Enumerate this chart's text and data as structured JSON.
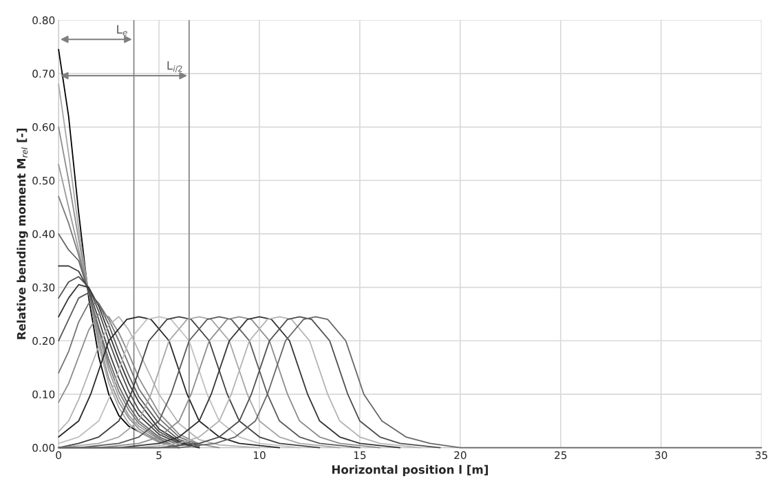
{
  "chart_data": {
    "type": "line",
    "xlabel": "Horizontal position l [m]",
    "ylabel": "Relative bending moment M$_{rel}$ [-]",
    "xlim": [
      0,
      35
    ],
    "xticks": [
      0,
      5,
      10,
      15,
      20,
      25,
      30,
      35
    ],
    "ylim": [
      0,
      0.8
    ],
    "yticks": [
      {
        "value": 0,
        "label": "0.00"
      },
      {
        "value": 0.1,
        "label": "0.10"
      },
      {
        "value": 0.2,
        "label": "0.20"
      },
      {
        "value": 0.3,
        "label": "0.30"
      },
      {
        "value": 0.4,
        "label": "0.40"
      },
      {
        "value": 0.5,
        "label": "0.50"
      },
      {
        "value": 0.6,
        "label": "0.60"
      },
      {
        "value": 0.7,
        "label": "0.70"
      },
      {
        "value": 0.8,
        "label": "0.80"
      }
    ],
    "grid": true,
    "ref_lines": [
      {
        "axis": "x",
        "value": 3.75,
        "label": "L$_{e}$",
        "color": "#7f7f7f"
      },
      {
        "axis": "x",
        "value": 6.5,
        "label": "L$_{i/2}$",
        "color": "#7f7f7f"
      }
    ],
    "series": [
      {
        "color": "#000000",
        "x": [
          0,
          0.5,
          1,
          1.5,
          2,
          2.5,
          3,
          3.5,
          4,
          5,
          6
        ],
        "values": [
          0.745,
          0.62,
          0.44,
          0.28,
          0.17,
          0.1,
          0.06,
          0.04,
          0.03,
          0.01,
          0.0
        ]
      },
      {
        "color": "#a6a6a6",
        "x": [
          0,
          0.5,
          1,
          1.5,
          2,
          2.5,
          3,
          3.5,
          4,
          5,
          6
        ],
        "values": [
          0.68,
          0.55,
          0.41,
          0.29,
          0.19,
          0.12,
          0.075,
          0.045,
          0.03,
          0.01,
          0.0
        ]
      },
      {
        "color": "#8c8c8c",
        "x": [
          0,
          0.5,
          1,
          1.5,
          2,
          2.5,
          3,
          3.5,
          4,
          5,
          6
        ],
        "values": [
          0.6,
          0.5,
          0.39,
          0.29,
          0.2,
          0.13,
          0.085,
          0.055,
          0.035,
          0.012,
          0.0
        ]
      },
      {
        "color": "#999999",
        "x": [
          0,
          0.5,
          1,
          1.5,
          2,
          2.5,
          3,
          3.5,
          4,
          5,
          6
        ],
        "values": [
          0.53,
          0.45,
          0.37,
          0.29,
          0.21,
          0.145,
          0.095,
          0.06,
          0.04,
          0.015,
          0.0
        ]
      },
      {
        "color": "#7a7a7a",
        "x": [
          0,
          0.5,
          1,
          1.5,
          2,
          2.5,
          3,
          3.5,
          4,
          5,
          6
        ],
        "values": [
          0.47,
          0.42,
          0.36,
          0.29,
          0.22,
          0.155,
          0.105,
          0.07,
          0.045,
          0.017,
          0.0
        ]
      },
      {
        "color": "#666666",
        "x": [
          0,
          0.5,
          1,
          1.5,
          2,
          2.5,
          3,
          3.5,
          4,
          5,
          6
        ],
        "values": [
          0.4,
          0.37,
          0.35,
          0.29,
          0.225,
          0.165,
          0.115,
          0.078,
          0.05,
          0.02,
          0.005
        ]
      },
      {
        "color": "#404040",
        "x": [
          0,
          0.5,
          1,
          1.5,
          2,
          2.5,
          3,
          3.5,
          4,
          5,
          6,
          7
        ],
        "values": [
          0.34,
          0.34,
          0.33,
          0.295,
          0.24,
          0.18,
          0.13,
          0.09,
          0.06,
          0.025,
          0.008,
          0.0
        ]
      },
      {
        "color": "#4d4d4d",
        "x": [
          0,
          0.5,
          1,
          1.5,
          2,
          2.5,
          3,
          3.5,
          4,
          5,
          6,
          7
        ],
        "values": [
          0.28,
          0.31,
          0.32,
          0.3,
          0.255,
          0.2,
          0.15,
          0.105,
          0.07,
          0.03,
          0.01,
          0.0
        ]
      },
      {
        "color": "#333333",
        "x": [
          0,
          0.5,
          1,
          1.5,
          2,
          2.5,
          3,
          3.5,
          4,
          5,
          6,
          7
        ],
        "values": [
          0.245,
          0.28,
          0.305,
          0.3,
          0.265,
          0.215,
          0.165,
          0.12,
          0.085,
          0.035,
          0.012,
          0.0
        ]
      },
      {
        "color": "#595959",
        "x": [
          0,
          0.5,
          1,
          1.5,
          2,
          2.5,
          3,
          3.5,
          4,
          5,
          6,
          7
        ],
        "values": [
          0.2,
          0.24,
          0.28,
          0.29,
          0.27,
          0.23,
          0.18,
          0.135,
          0.095,
          0.045,
          0.015,
          0.003
        ]
      },
      {
        "color": "#737373",
        "x": [
          0,
          0.5,
          1,
          1.5,
          2,
          2.5,
          3,
          3.5,
          4,
          5,
          6,
          7
        ],
        "values": [
          0.14,
          0.18,
          0.235,
          0.27,
          0.27,
          0.24,
          0.2,
          0.155,
          0.11,
          0.055,
          0.02,
          0.005
        ]
      },
      {
        "color": "#8c8c8c",
        "x": [
          0,
          0.5,
          1,
          1.5,
          2,
          2.5,
          3,
          3.5,
          4,
          5,
          6,
          7,
          8
        ],
        "values": [
          0.085,
          0.12,
          0.17,
          0.22,
          0.25,
          0.245,
          0.215,
          0.175,
          0.13,
          0.065,
          0.025,
          0.007,
          0.0
        ]
      },
      {
        "color": "#b3b3b3",
        "x": [
          0,
          0.5,
          1,
          1.5,
          2,
          2.5,
          3,
          3.5,
          4,
          5,
          6,
          7,
          8,
          10
        ],
        "values": [
          0.03,
          0.05,
          0.09,
          0.14,
          0.19,
          0.23,
          0.245,
          0.22,
          0.18,
          0.1,
          0.045,
          0.015,
          0.005,
          0.0
        ]
      },
      {
        "color": "#262626",
        "x": [
          0,
          1,
          1.6,
          2.5,
          3.4,
          4,
          4.6,
          5.5,
          6.4,
          7,
          8,
          9,
          11
        ],
        "values": [
          0.02,
          0.05,
          0.1,
          0.2,
          0.24,
          0.245,
          0.24,
          0.2,
          0.1,
          0.05,
          0.02,
          0.008,
          0.0
        ]
      },
      {
        "color": "#bfbfbf",
        "x": [
          0,
          1,
          2,
          2.6,
          3.5,
          4.4,
          5,
          5.6,
          6.5,
          7.4,
          8,
          9,
          10,
          12
        ],
        "values": [
          0.008,
          0.02,
          0.05,
          0.1,
          0.2,
          0.24,
          0.245,
          0.24,
          0.2,
          0.1,
          0.05,
          0.02,
          0.008,
          0.0
        ]
      },
      {
        "color": "#404040",
        "x": [
          0,
          1,
          2,
          3,
          3.6,
          4.5,
          5.4,
          6,
          6.6,
          7.5,
          8.4,
          9,
          10,
          11,
          13
        ],
        "values": [
          0.0,
          0.008,
          0.02,
          0.05,
          0.1,
          0.2,
          0.24,
          0.245,
          0.24,
          0.2,
          0.1,
          0.05,
          0.02,
          0.008,
          0.0
        ]
      },
      {
        "color": "#a6a6a6",
        "x": [
          0,
          2,
          3,
          4,
          4.6,
          5.5,
          6.4,
          7,
          7.6,
          8.5,
          9.4,
          10,
          11,
          12,
          14
        ],
        "values": [
          0.0,
          0.008,
          0.02,
          0.05,
          0.1,
          0.2,
          0.24,
          0.245,
          0.24,
          0.2,
          0.1,
          0.05,
          0.02,
          0.008,
          0.0
        ]
      },
      {
        "color": "#595959",
        "x": [
          0,
          1,
          3,
          4,
          5,
          5.6,
          6.5,
          7.4,
          8,
          8.6,
          9.5,
          10.4,
          11,
          12,
          13,
          15
        ],
        "values": [
          0.0,
          0.0,
          0.008,
          0.02,
          0.05,
          0.1,
          0.2,
          0.24,
          0.245,
          0.24,
          0.2,
          0.1,
          0.05,
          0.02,
          0.008,
          0.0
        ]
      },
      {
        "color": "#8c8c8c",
        "x": [
          0,
          2,
          4,
          5,
          6,
          6.6,
          7.5,
          8.4,
          9,
          9.6,
          10.5,
          11.4,
          12,
          13,
          14,
          16
        ],
        "values": [
          0.0,
          0.0,
          0.008,
          0.02,
          0.05,
          0.1,
          0.2,
          0.24,
          0.245,
          0.24,
          0.2,
          0.1,
          0.05,
          0.02,
          0.008,
          0.0
        ]
      },
      {
        "color": "#333333",
        "x": [
          0,
          3,
          5,
          6,
          7,
          7.6,
          8.5,
          9.4,
          10,
          10.6,
          11.5,
          12.4,
          13,
          14,
          15,
          17
        ],
        "values": [
          0.0,
          0.0,
          0.008,
          0.02,
          0.05,
          0.1,
          0.2,
          0.24,
          0.245,
          0.24,
          0.2,
          0.1,
          0.05,
          0.02,
          0.008,
          0.0
        ]
      },
      {
        "color": "#b3b3b3",
        "x": [
          0,
          4,
          6,
          7,
          8,
          8.6,
          9.5,
          10.4,
          11,
          11.6,
          12.5,
          13.4,
          14,
          15,
          16,
          18
        ],
        "values": [
          0.0,
          0.0,
          0.008,
          0.02,
          0.05,
          0.1,
          0.2,
          0.24,
          0.245,
          0.24,
          0.2,
          0.1,
          0.05,
          0.02,
          0.008,
          0.0
        ]
      },
      {
        "color": "#4d4d4d",
        "x": [
          0,
          5,
          7,
          8,
          9,
          9.6,
          10.5,
          11.4,
          12,
          12.6,
          13.5,
          14.4,
          15,
          16,
          17,
          19
        ],
        "values": [
          0.0,
          0.0,
          0.008,
          0.02,
          0.05,
          0.1,
          0.2,
          0.24,
          0.245,
          0.24,
          0.2,
          0.1,
          0.05,
          0.02,
          0.008,
          0.0
        ]
      },
      {
        "color": "#666666",
        "x": [
          0,
          6,
          7.8,
          8.8,
          9.8,
          10.4,
          11.3,
          12.2,
          12.8,
          13.4,
          14.3,
          15.2,
          16.1,
          17.3,
          18.5,
          20,
          35
        ],
        "values": [
          0.0,
          0.0,
          0.008,
          0.02,
          0.05,
          0.1,
          0.2,
          0.24,
          0.245,
          0.24,
          0.2,
          0.1,
          0.05,
          0.02,
          0.008,
          0.0,
          0.0
        ]
      }
    ]
  }
}
